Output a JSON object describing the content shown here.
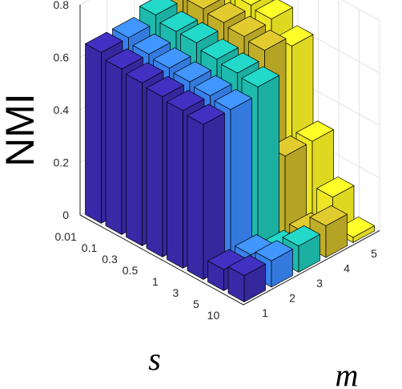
{
  "chart_data": {
    "type": "bar3d",
    "ylabel": "NMI",
    "xlabel_s": "s",
    "xlabel_m": "m",
    "zlim": [
      0,
      0.8
    ],
    "z_ticks": [
      "0",
      "0.2",
      "0.4",
      "0.6",
      "0.8"
    ],
    "s_categories": [
      "0.01",
      "0.1",
      "0.3",
      "0.5",
      "1",
      "3",
      "5",
      "10"
    ],
    "m_categories": [
      "1",
      "2",
      "3",
      "4",
      "5"
    ],
    "grid": true,
    "colormap": [
      "#3b2bad",
      "#3a86f6",
      "#1ec2b4",
      "#c9b52a",
      "#f8f025"
    ],
    "series": [
      {
        "m": "1",
        "values": [
          0.65,
          0.63,
          0.62,
          0.61,
          0.6,
          0.59,
          0.08,
          0.1
        ]
      },
      {
        "m": "2",
        "values": [
          0.65,
          0.63,
          0.62,
          0.61,
          0.6,
          0.59,
          0.08,
          0.1
        ]
      },
      {
        "m": "3",
        "values": [
          0.68,
          0.66,
          0.66,
          0.64,
          0.63,
          0.62,
          0.04,
          0.1
        ]
      },
      {
        "m": "4",
        "values": [
          0.69,
          0.69,
          0.68,
          0.67,
          0.66,
          0.3,
          0.05,
          0.12
        ]
      },
      {
        "m": "5",
        "values": [
          0.72,
          0.7,
          0.69,
          0.68,
          0.62,
          0.3,
          0.13,
          0.02
        ]
      }
    ]
  }
}
